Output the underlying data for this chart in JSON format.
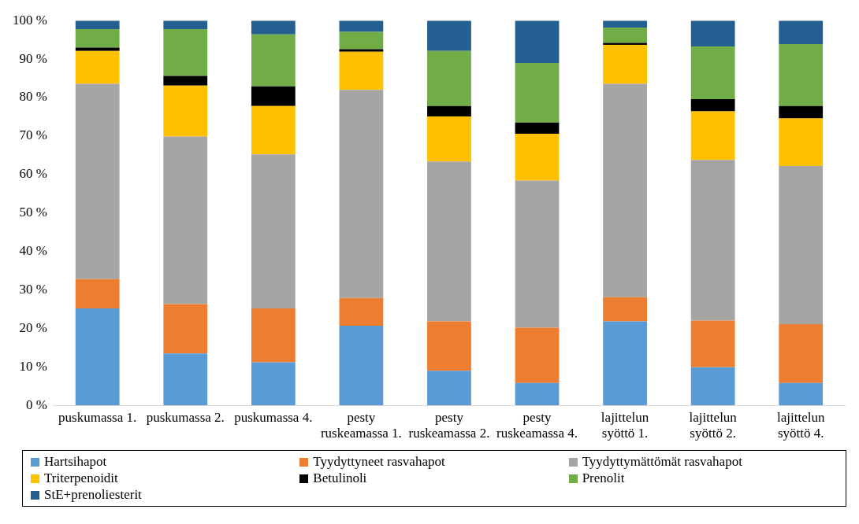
{
  "chart_data": {
    "type": "bar",
    "stacked": true,
    "categories": [
      "puskumassa 1.",
      "puskumassa 2.",
      "puskumassa 4.",
      "pesty ruskeamassa 1.",
      "pesty ruskeamassa 2.",
      "pesty ruskeamassa 4.",
      "lajittelun syöttö 1.",
      "lajittelun syöttö 2.",
      "lajittelun syöttö 4."
    ],
    "ylim": [
      0,
      100
    ],
    "yticks": [
      {
        "value": 0,
        "label": "0 %"
      },
      {
        "value": 10,
        "label": "10 %"
      },
      {
        "value": 20,
        "label": "20 %"
      },
      {
        "value": 30,
        "label": "30 %"
      },
      {
        "value": 40,
        "label": "40 %"
      },
      {
        "value": 50,
        "label": "50 %"
      },
      {
        "value": 60,
        "label": "60 %"
      },
      {
        "value": 70,
        "label": "70 %"
      },
      {
        "value": 80,
        "label": "80 %"
      },
      {
        "value": 90,
        "label": "90 %"
      },
      {
        "value": 100,
        "label": "100 %"
      }
    ],
    "grid": false,
    "legend": "bottom",
    "series": [
      {
        "name": "Hartsihapot",
        "color": "#5b9bd5",
        "values": [
          25.2,
          13.5,
          11.2,
          20.7,
          9.0,
          5.8,
          21.8,
          9.9,
          5.8
        ]
      },
      {
        "name": "Tyydyttyneet rasvahapot",
        "color": "#ed7d31",
        "values": [
          7.6,
          12.8,
          14.0,
          7.2,
          12.8,
          14.4,
          6.3,
          12.1,
          15.3
        ]
      },
      {
        "name": "Tyydyttymättömät rasvahapot",
        "color": "#a5a5a5",
        "values": [
          50.8,
          43.6,
          40.0,
          54.1,
          41.6,
          38.2,
          55.5,
          41.8,
          41.1
        ]
      },
      {
        "name": "Triterpenoidit",
        "color": "#ffc000",
        "values": [
          8.5,
          13.2,
          12.6,
          9.9,
          11.7,
          12.2,
          10.1,
          12.6,
          12.4
        ]
      },
      {
        "name": "Betulinoli",
        "color": "#000000",
        "values": [
          0.9,
          2.5,
          5.1,
          0.7,
          2.7,
          2.9,
          0.5,
          3.2,
          3.2
        ]
      },
      {
        "name": "Prenolit",
        "color": "#70ad47",
        "values": [
          4.8,
          12.2,
          13.5,
          4.5,
          14.3,
          15.5,
          4.0,
          13.7,
          16.1
        ]
      },
      {
        "name": "StE+prenoliesterit",
        "color": "#255e91",
        "values": [
          2.2,
          2.2,
          3.6,
          2.9,
          7.9,
          11.0,
          1.8,
          6.7,
          6.1
        ]
      }
    ]
  }
}
